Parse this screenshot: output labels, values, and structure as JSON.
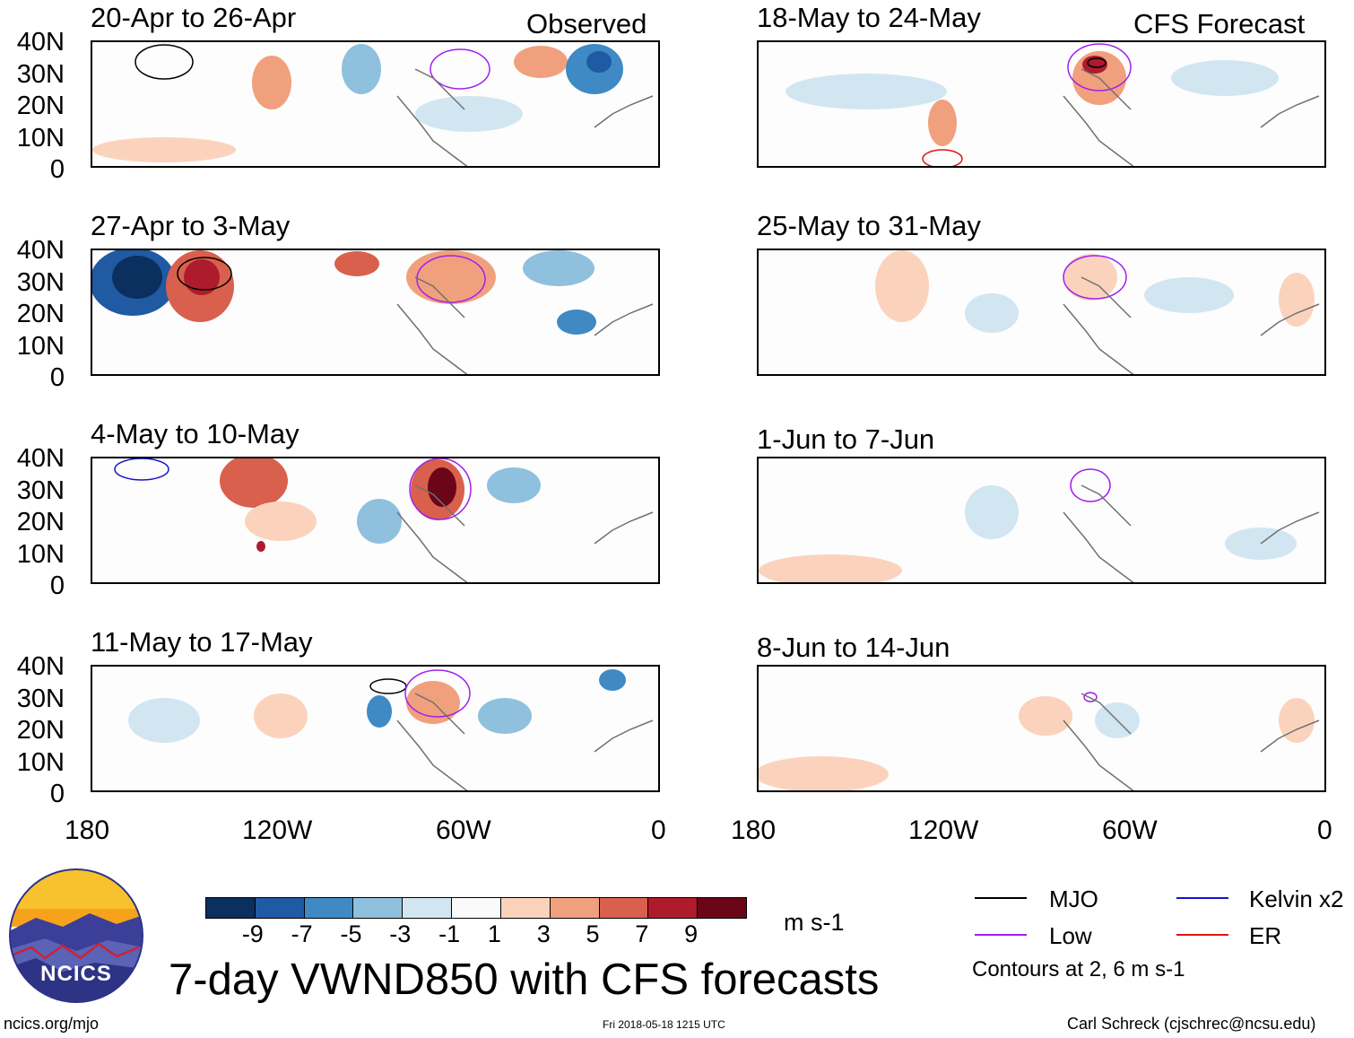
{
  "headers": {
    "left": "Observed",
    "right": "CFS Forecast"
  },
  "panels": [
    {
      "label": "20-Apr to 26-Apr"
    },
    {
      "label": "27-Apr to 3-May"
    },
    {
      "label": "4-May to 10-May"
    },
    {
      "label": "11-May to 17-May"
    },
    {
      "label": "18-May to 24-May"
    },
    {
      "label": "25-May to 31-May"
    },
    {
      "label": "1-Jun to 7-Jun"
    },
    {
      "label": "8-Jun to 14-Jun"
    }
  ],
  "lat_labels": [
    "40N",
    "30N",
    "20N",
    "10N",
    "0"
  ],
  "lon_labels": [
    "180",
    "120W",
    "60W",
    "0"
  ],
  "colorbar": {
    "ticks": [
      "-9",
      "-7",
      "-5",
      "-3",
      "-1",
      "1",
      "3",
      "5",
      "7",
      "9"
    ],
    "colors": [
      "#0b2f5e",
      "#1f5aa3",
      "#3f8ac4",
      "#8fc0de",
      "#d2e6f2",
      "#fafafa",
      "#fbd3bd",
      "#f1a07d",
      "#d9604c",
      "#ad1b2d",
      "#6a0618"
    ],
    "unit": "m s-1"
  },
  "legend": {
    "items": [
      {
        "label": "MJO",
        "color": "#000000"
      },
      {
        "label": "Kelvin x2",
        "color": "#1414d2"
      },
      {
        "label": "Low",
        "color": "#a020f0"
      },
      {
        "label": "ER",
        "color": "#e01414"
      }
    ],
    "note": "Contours at 2, 6 m s-1"
  },
  "logo": {
    "text": "NCICS"
  },
  "title": "7-day VWND850 with CFS forecasts",
  "footer": {
    "url": "ncics.org/mjo",
    "timestamp": "Fri 2018-05-18 1215 UTC",
    "credit": "Carl Schreck (cjschrec@ncsu.edu)"
  }
}
